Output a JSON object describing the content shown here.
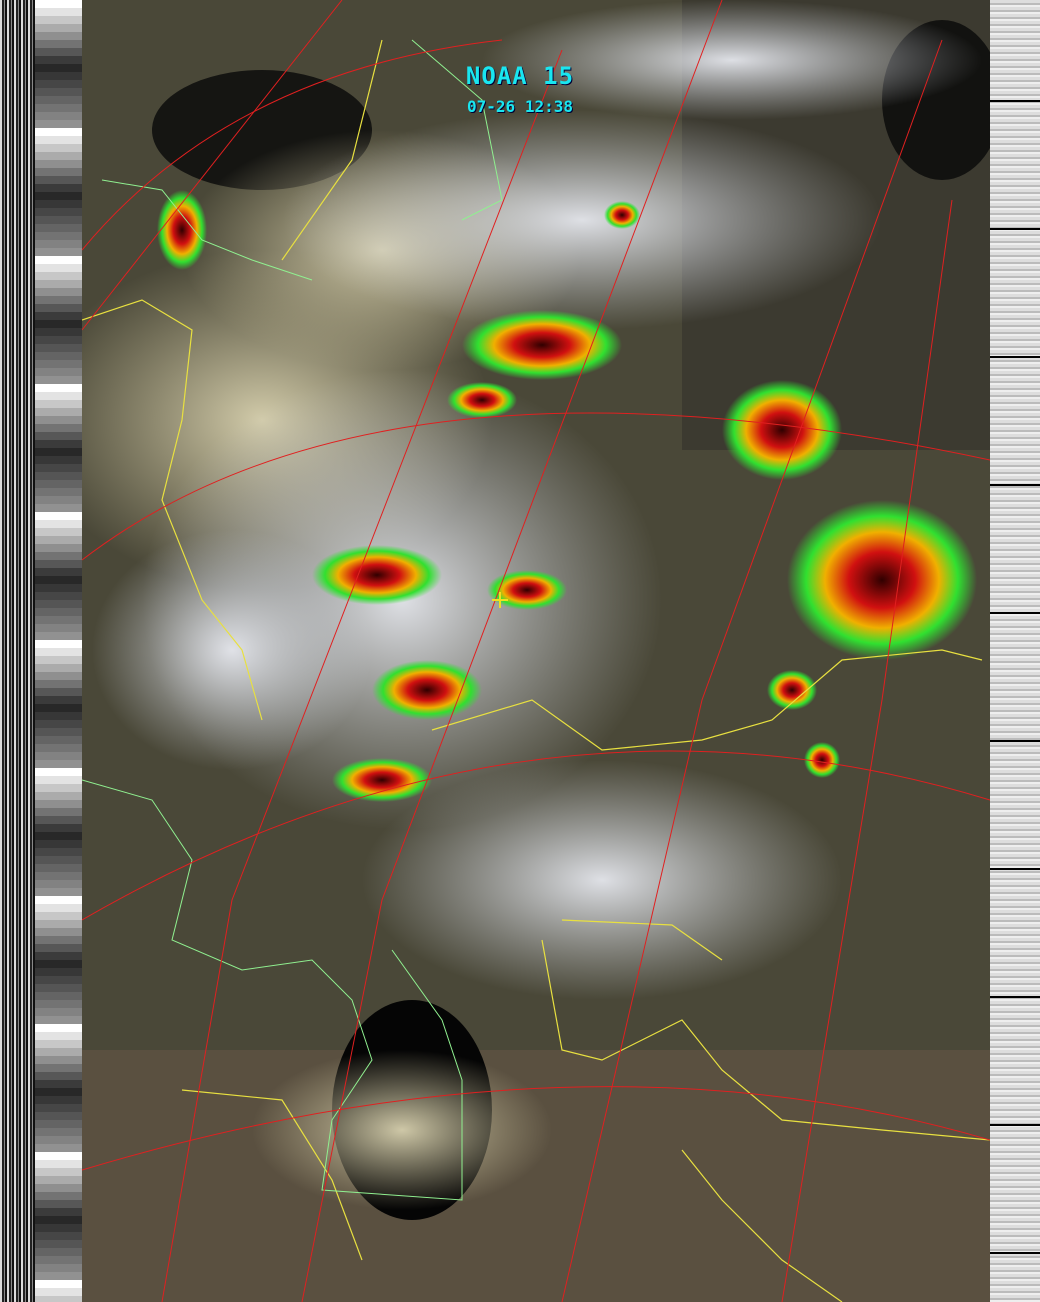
{
  "overlay": {
    "satellite": "NOAA 15",
    "timestamp": "07-26 12:38"
  },
  "colors": {
    "label": "#19e6f0",
    "grid": "#e02020",
    "borders": "#e8e040",
    "coast": "#90f090"
  }
}
